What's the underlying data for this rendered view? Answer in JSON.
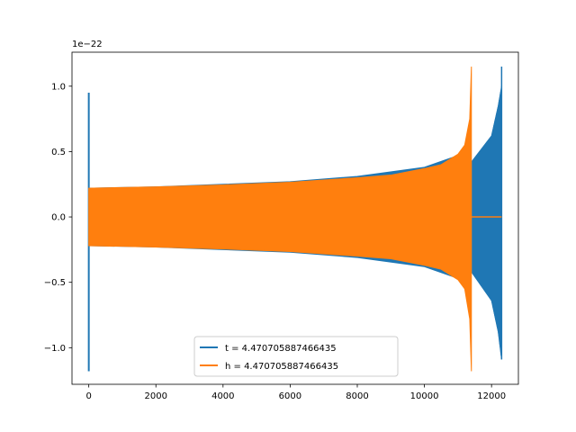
{
  "chart_data": {
    "type": "line",
    "title": "",
    "xlabel": "",
    "ylabel": "",
    "y_offset_label": "1e−22",
    "xlim": [
      -500,
      12800
    ],
    "ylim": [
      -1.28,
      1.26
    ],
    "x_ticks": [
      0,
      2000,
      4000,
      6000,
      8000,
      10000,
      12000
    ],
    "x_tick_labels": [
      "0",
      "2000",
      "4000",
      "6000",
      "8000",
      "10000",
      "12000"
    ],
    "y_ticks": [
      -1.0,
      -0.5,
      0.0,
      0.5,
      1.0
    ],
    "y_tick_labels": [
      "−1.0",
      "−0.5",
      "0.0",
      "0.5",
      "1.0"
    ],
    "grid": false,
    "legend_position": "lower center",
    "series": [
      {
        "name": "t = 4.470705887466435",
        "color": "#1f77b4",
        "description_points": {
          "spike_x": 0,
          "spike_max": 0.95,
          "spike_min": -1.18,
          "env_x": [
            0,
            2000,
            4000,
            6000,
            8000,
            10000,
            11000,
            11400,
            12000,
            12200,
            12300
          ],
          "env_upper": [
            0.22,
            0.23,
            0.25,
            0.27,
            0.31,
            0.38,
            0.47,
            0.42,
            0.62,
            0.85,
            1.0
          ],
          "env_lower": [
            -0.22,
            -0.23,
            -0.25,
            -0.27,
            -0.31,
            -0.38,
            -0.47,
            -0.42,
            -0.64,
            -0.88,
            -1.09
          ],
          "end_spike_x": 12300,
          "end_spike_max": 1.15,
          "end_spike_min": -1.09
        }
      },
      {
        "name": "h = 4.470705887466435",
        "color": "#ff7f0e",
        "description_points": {
          "env_x": [
            0,
            2000,
            4000,
            6000,
            8000,
            9000,
            10000,
            10500,
            11000,
            11200,
            11350,
            11400
          ],
          "env_upper": [
            0.22,
            0.23,
            0.245,
            0.265,
            0.3,
            0.32,
            0.37,
            0.4,
            0.48,
            0.55,
            0.75,
            1.15
          ],
          "env_lower": [
            -0.22,
            -0.23,
            -0.245,
            -0.265,
            -0.3,
            -0.32,
            -0.37,
            -0.4,
            -0.48,
            -0.55,
            -0.78,
            -1.18
          ],
          "flat_x": [
            11400,
            12300
          ],
          "flat_y": 0.0
        }
      }
    ]
  }
}
